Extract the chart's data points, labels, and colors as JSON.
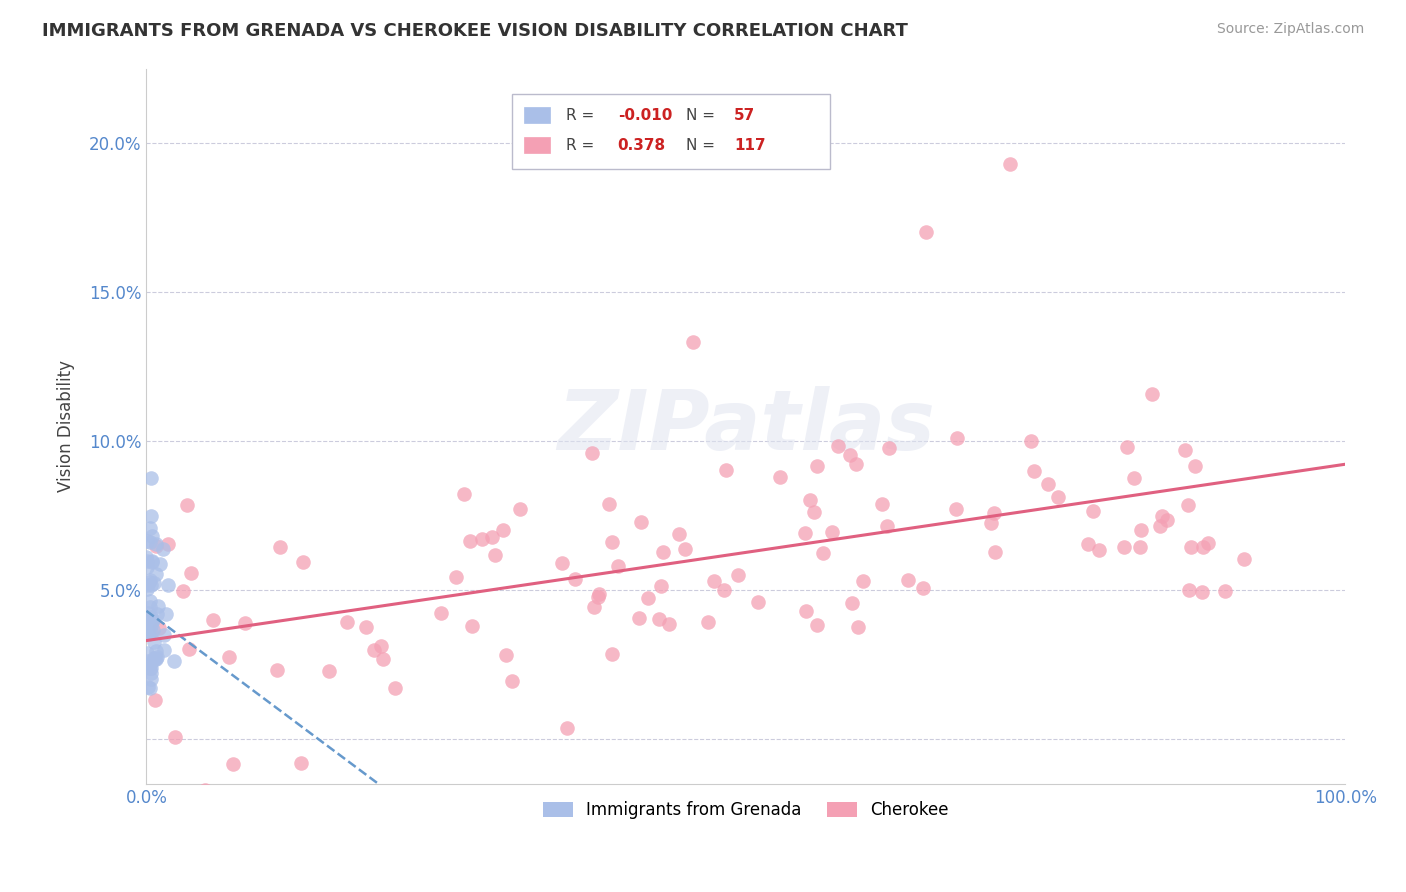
{
  "title": "IMMIGRANTS FROM GRENADA VS CHEROKEE VISION DISABILITY CORRELATION CHART",
  "source": "Source: ZipAtlas.com",
  "ylabel": "Vision Disability",
  "ytick_values": [
    0.0,
    0.05,
    0.1,
    0.15,
    0.2
  ],
  "ytick_labels": [
    "",
    "5.0%",
    "10.0%",
    "15.0%",
    "20.0%"
  ],
  "xtick_values": [
    0.0,
    1.0
  ],
  "xtick_labels": [
    "0.0%",
    "100.0%"
  ],
  "background_color": "#ffffff",
  "grid_color": "#ccccdd",
  "watermark": "ZIPatlas",
  "xlim": [
    0.0,
    1.0
  ],
  "ylim": [
    -0.015,
    0.225
  ],
  "scatter_color_grenada": "#aabfe8",
  "scatter_color_cherokee": "#f4a0b4",
  "line_color_grenada": "#6699cc",
  "line_color_cherokee": "#e06080",
  "legend_R1": "-0.010",
  "legend_N1": "57",
  "legend_R2": "0.378",
  "legend_N2": "117",
  "legend_label1": "Immigrants from Grenada",
  "legend_label2": "Cherokee",
  "title_fontsize": 13,
  "source_fontsize": 10,
  "tick_fontsize": 12,
  "ylabel_fontsize": 12
}
